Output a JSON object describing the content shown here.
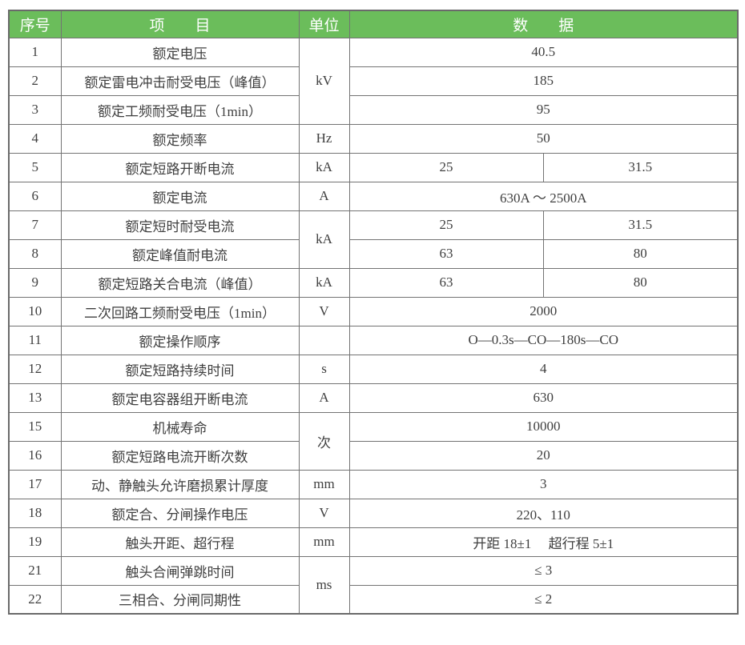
{
  "colors": {
    "header_bg": "#6bbd5b",
    "header_text": "#ffffff",
    "border": "#737373",
    "body_text": "#3f3f3f"
  },
  "table": {
    "header": {
      "no": "序号",
      "item": "项　　目",
      "unit": "单位",
      "data": "数　　据"
    },
    "rows": [
      {
        "no": "1",
        "item": "额定电压",
        "unit": "kV",
        "unit_rowspan": 3,
        "data": [
          {
            "text": "40.5",
            "colspan": 2
          }
        ]
      },
      {
        "no": "2",
        "item": "额定雷电冲击耐受电压（峰值）",
        "data": [
          {
            "text": "185",
            "colspan": 2
          }
        ]
      },
      {
        "no": "3",
        "item": "额定工频耐受电压（1min）",
        "data": [
          {
            "text": "95",
            "colspan": 2
          }
        ]
      },
      {
        "no": "4",
        "item": "额定频率",
        "unit": "Hz",
        "data": [
          {
            "text": "50",
            "colspan": 2
          }
        ]
      },
      {
        "no": "5",
        "item": "额定短路开断电流",
        "unit": "kA",
        "data": [
          {
            "text": "25"
          },
          {
            "text": "31.5"
          }
        ]
      },
      {
        "no": "6",
        "item": "额定电流",
        "unit": "A",
        "data": [
          {
            "text": "630A ～ 2500A",
            "colspan": 2
          }
        ]
      },
      {
        "no": "7",
        "item": "额定短时耐受电流",
        "unit": "kA",
        "unit_rowspan": 2,
        "data": [
          {
            "text": "25"
          },
          {
            "text": "31.5"
          }
        ]
      },
      {
        "no": "8",
        "item": "额定峰值耐电流",
        "data": [
          {
            "text": "63"
          },
          {
            "text": "80"
          }
        ]
      },
      {
        "no": "9",
        "item": "额定短路关合电流（峰值）",
        "unit": "kA",
        "data": [
          {
            "text": "63"
          },
          {
            "text": "80"
          }
        ]
      },
      {
        "no": "10",
        "item": "二次回路工频耐受电压（1min）",
        "unit": "V",
        "data": [
          {
            "text": "2000",
            "colspan": 2
          }
        ]
      },
      {
        "no": "11",
        "item": "额定操作顺序",
        "unit": "",
        "data": [
          {
            "text": "O—0.3s—CO—180s—CO",
            "colspan": 2
          }
        ]
      },
      {
        "no": "12",
        "item": "额定短路持续时间",
        "unit": "s",
        "data": [
          {
            "text": "4",
            "colspan": 2
          }
        ]
      },
      {
        "no": "13",
        "item": "额定电容器组开断电流",
        "unit": "A",
        "data": [
          {
            "text": "630",
            "colspan": 2
          }
        ]
      },
      {
        "no": "15",
        "item": "机械寿命",
        "unit": "次",
        "unit_rowspan": 2,
        "data": [
          {
            "text": "10000",
            "colspan": 2
          }
        ]
      },
      {
        "no": "16",
        "item": "额定短路电流开断次数",
        "data": [
          {
            "text": "20",
            "colspan": 2
          }
        ]
      },
      {
        "no": "17",
        "item": "动、静触头允许磨损累计厚度",
        "unit": "mm",
        "data": [
          {
            "text": "3",
            "colspan": 2
          }
        ]
      },
      {
        "no": "18",
        "item": "额定合、分闸操作电压",
        "unit": "V",
        "data": [
          {
            "text": "220、110",
            "colspan": 2
          }
        ]
      },
      {
        "no": "19",
        "item": "触头开距、超行程",
        "unit": "mm",
        "data": [
          {
            "text": "开距 18±1　 超行程 5±1",
            "colspan": 2
          }
        ]
      },
      {
        "no": "21",
        "item": "触头合闸弹跳时间",
        "unit": "ms",
        "unit_rowspan": 2,
        "data": [
          {
            "text": "≤ 3",
            "colspan": 2
          }
        ]
      },
      {
        "no": "22",
        "item": "三相合、分闸同期性",
        "data": [
          {
            "text": "≤ 2",
            "colspan": 2
          }
        ]
      }
    ]
  }
}
